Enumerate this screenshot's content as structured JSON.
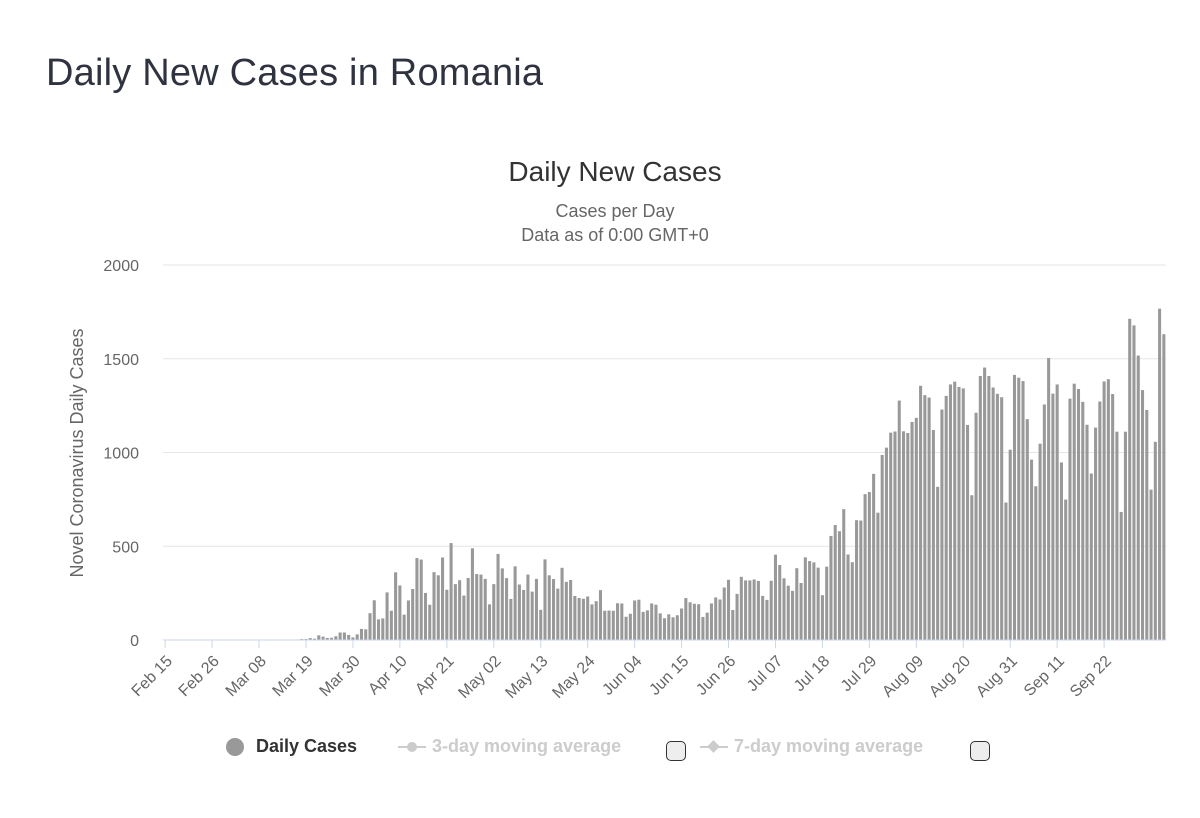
{
  "page": {
    "title": "Daily New Cases in Romania"
  },
  "chart_data": {
    "type": "bar",
    "title": "Daily New Cases",
    "subtitle": "Cases per Day",
    "subtitle2": "Data as of 0:00 GMT+0",
    "xlabel": "",
    "ylabel": "Novel Coronavirus Daily Cases",
    "ylim": [
      0,
      2000
    ],
    "yticks": [
      0,
      500,
      1000,
      1500,
      2000
    ],
    "grid": true,
    "start_date": "Feb 15",
    "x_tick_labels": [
      "Feb 15",
      "Feb 26",
      "Mar 08",
      "Mar 19",
      "Mar 30",
      "Apr 10",
      "Apr 21",
      "May 02",
      "May 13",
      "May 24",
      "Jun 04",
      "Jun 15",
      "Jun 26",
      "Jul 07",
      "Jul 18",
      "Jul 29",
      "Aug 09",
      "Aug 20",
      "Aug 31",
      "Sep 11",
      "Sep 22"
    ],
    "x_tick_interval_days": 11,
    "bar_color": "#999999",
    "series": [
      {
        "name": "Daily Cases",
        "values": [
          0,
          0,
          0,
          0,
          0,
          0,
          0,
          0,
          0,
          0,
          0,
          0,
          0,
          0,
          0,
          0,
          0,
          0,
          0,
          0,
          0,
          0,
          0,
          0,
          0,
          0,
          1,
          0,
          0,
          2,
          2,
          3,
          5,
          5,
          10,
          7,
          25,
          18,
          11,
          12,
          20,
          40,
          40,
          27,
          14,
          30,
          59,
          57,
          143,
          212,
          110,
          115,
          254,
          156,
          361,
          291,
          135,
          211,
          272,
          437,
          429,
          251,
          188,
          362,
          345,
          440,
          268,
          517,
          298,
          319,
          237,
          331,
          489,
          352,
          349,
          326,
          190,
          298,
          459,
          382,
          330,
          219,
          393,
          296,
          267,
          349,
          258,
          326,
          161,
          430,
          345,
          325,
          274,
          385,
          310,
          320,
          235,
          224,
          220,
          232,
          190,
          207,
          266,
          156,
          157,
          156,
          196,
          195,
          124,
          140,
          211,
          215,
          150,
          158,
          195,
          188,
          142,
          116,
          137,
          121,
          132,
          168,
          224,
          201,
          193,
          191,
          123,
          146,
          195,
          227,
          216,
          280,
          321,
          160,
          246,
          337,
          318,
          318,
          323,
          315,
          235,
          214,
          316,
          455,
          400,
          329,
          290,
          262,
          383,
          304,
          441,
          421,
          414,
          386,
          239,
          391,
          555,
          613,
          580,
          698,
          456,
          415,
          639,
          637,
          778,
          789,
          886,
          679,
          987,
          1026,
          1106,
          1112,
          1277,
          1113,
          1104,
          1163,
          1185,
          1356,
          1306,
          1293,
          1120,
          817,
          1229,
          1302,
          1363,
          1378,
          1350,
          1342,
          1147,
          772,
          1212,
          1408,
          1453,
          1408,
          1347,
          1313,
          1295,
          733,
          1015,
          1414,
          1399,
          1381,
          1178,
          962,
          820,
          1047,
          1256,
          1504,
          1314,
          1363,
          947,
          749,
          1287,
          1367,
          1339,
          1270,
          1148,
          888,
          1133,
          1272,
          1379,
          1391,
          1312,
          1111,
          683,
          1111,
          1713,
          1678,
          1517,
          1333,
          1227,
          802,
          1057,
          1767,
          1631
        ]
      },
      {
        "name": "3-day moving average",
        "visible": false
      },
      {
        "name": "7-day moving average",
        "visible": false
      }
    ],
    "legend": {
      "position": "bottom"
    }
  },
  "legend": {
    "daily_label": "Daily Cases",
    "ma3_label": "3-day moving average",
    "ma7_label": "7-day moving average"
  }
}
